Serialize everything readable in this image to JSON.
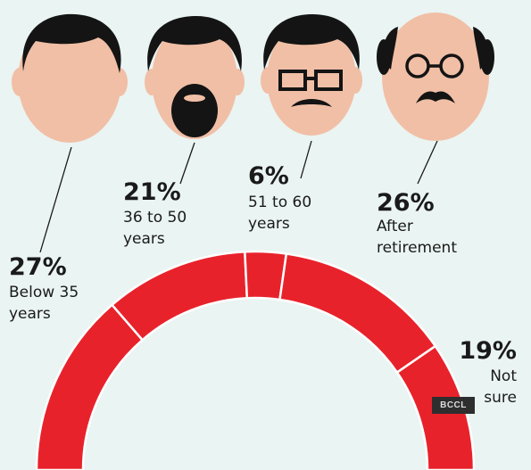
{
  "chart_data": {
    "type": "pie",
    "layout": "semicircle-donut",
    "segment_color": "#e8222b",
    "segments": [
      {
        "pct_label": "27%",
        "label_lines": [
          "Below 35",
          "years"
        ],
        "value": 27
      },
      {
        "pct_label": "21%",
        "label_lines": [
          "36 to 50",
          "years"
        ],
        "value": 21
      },
      {
        "pct_label": "6%",
        "label_lines": [
          "51 to 60",
          "years"
        ],
        "value": 6
      },
      {
        "pct_label": "26%",
        "label_lines": [
          "After",
          "retirement"
        ],
        "value": 26
      },
      {
        "pct_label": "19%",
        "label_lines": [
          "Not",
          "sure"
        ],
        "value": 19
      }
    ]
  },
  "badge": "BCCL"
}
